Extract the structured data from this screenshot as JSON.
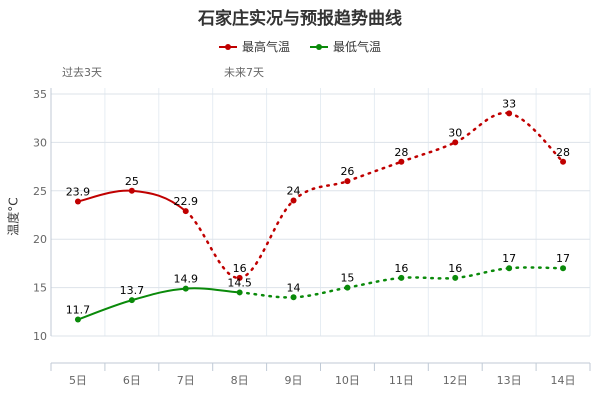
{
  "chart_data": {
    "type": "line",
    "title": "石家庄实况与预报趋势曲线",
    "ylabel": "温度°C",
    "ylim": [
      10,
      35
    ],
    "yticks": [
      10,
      15,
      20,
      25,
      30,
      35
    ],
    "grid": true,
    "legend_position": "top",
    "annotations": [
      "过去3天",
      "未来7天"
    ],
    "categories": [
      "5日",
      "6日",
      "7日",
      "8日",
      "9日",
      "10日",
      "11日",
      "12日",
      "13日",
      "14日"
    ],
    "series": [
      {
        "name": "最高气温",
        "color": "#c00000",
        "values": [
          23.9,
          25,
          22.9,
          16,
          24,
          26,
          28,
          30,
          33,
          28
        ],
        "solid_through": "7日"
      },
      {
        "name": "最低气温",
        "color": "#0a8a0a",
        "values": [
          11.7,
          13.7,
          14.9,
          14.5,
          14,
          15,
          16,
          16,
          17,
          17
        ],
        "solid_through": "8日"
      }
    ]
  }
}
